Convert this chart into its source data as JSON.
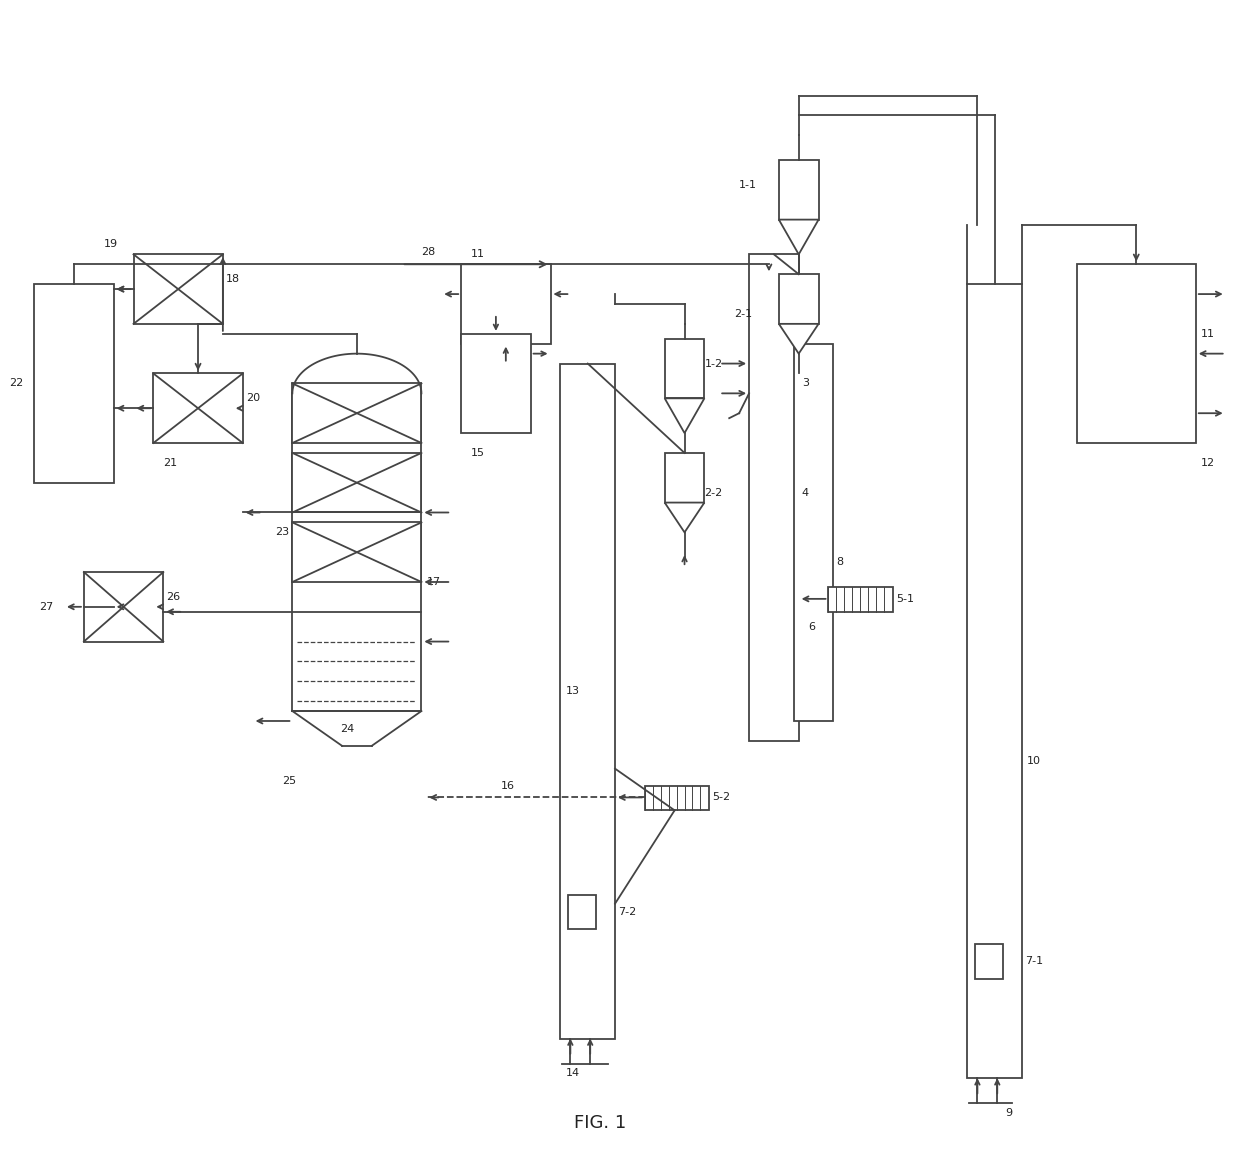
{
  "fig_width": 12.4,
  "fig_height": 11.62,
  "dpi": 100,
  "bg_color": "#ffffff",
  "lc": "#444444",
  "lw": 1.3,
  "title": "FIG. 1",
  "title_fontsize": 13,
  "xlim": [
    0,
    124
  ],
  "ylim": [
    0,
    116.2
  ]
}
